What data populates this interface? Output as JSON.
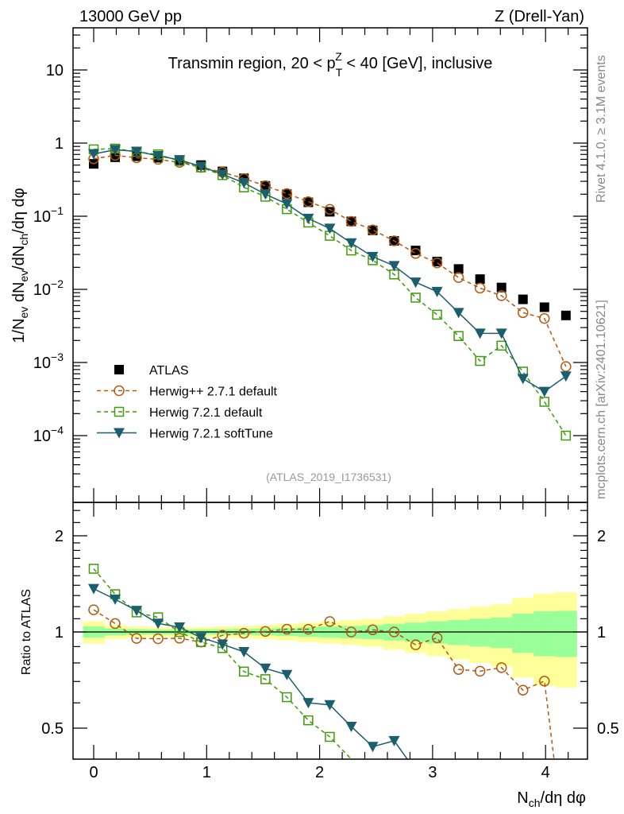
{
  "header": {
    "left": "13000 GeV pp",
    "right": "Z (Drell-Yan)"
  },
  "plot_title": {
    "pre": "Transmin region, 20 < p",
    "sup": "Z",
    "sub": "T",
    "post": " < 40 [GeV], inclusive"
  },
  "side_labels": {
    "rivet": "Rivet 4.1.0, ≥ 3.1M events",
    "mcplots": "mcplots.cern.ch [arXiv:2401.10621]"
  },
  "analysis_id": "(ATLAS_2019_I1736531)",
  "colors": {
    "atlas": "#000000",
    "herwigpp": "#b35a12",
    "herwig721": "#3f9b0b",
    "softtune": "#1b5e6e",
    "band_inner": "#99ff99",
    "band_outer": "#ffff99"
  },
  "chart_data": [
    {
      "type": "scatter",
      "title": "Transmin region, 20 < pT^Z < 40 [GeV], inclusive",
      "xlabel": "N_ch/dη dφ",
      "ylabel": "1/N_ev dN_ev/dN_ch/dη dφ",
      "yscale": "log",
      "xlim": [
        -0.18,
        4.37
      ],
      "ylim": [
        1.2e-05,
        38
      ],
      "legend_position": "bottom-left",
      "x": [
        0,
        0.19,
        0.38,
        0.57,
        0.76,
        0.95,
        1.14,
        1.33,
        1.52,
        1.71,
        1.9,
        2.09,
        2.28,
        2.47,
        2.66,
        2.85,
        3.04,
        3.23,
        3.42,
        3.61,
        3.8,
        3.99,
        4.18
      ],
      "y_ticks": [
        10,
        1,
        0.1,
        0.01,
        0.001,
        0.0001
      ],
      "y_tick_labels": [
        {
          "base": "10",
          "exp": ""
        },
        {
          "base": "1",
          "exp": ""
        },
        {
          "base": "10",
          "exp": "−1"
        },
        {
          "base": "10",
          "exp": "−2"
        },
        {
          "base": "10",
          "exp": "−3"
        },
        {
          "base": "10",
          "exp": "−4"
        }
      ],
      "series": [
        {
          "name": "ATLAS",
          "key": "atlas",
          "values": [
            0.52,
            0.64,
            0.66,
            0.63,
            0.57,
            0.5,
            0.41,
            0.33,
            0.26,
            0.2,
            0.155,
            0.115,
            0.085,
            0.064,
            0.046,
            0.034,
            0.024,
            0.019,
            0.0138,
            0.0106,
            0.0073,
            0.0057,
            0.0044
          ]
        },
        {
          "name": "Herwig++ 2.7.1 default",
          "key": "herwigpp",
          "values": [
            0.61,
            0.68,
            0.63,
            0.6,
            0.545,
            0.465,
            0.4,
            0.327,
            0.261,
            0.204,
            0.158,
            0.124,
            0.085,
            0.065,
            0.046,
            0.031,
            0.023,
            0.0145,
            0.0104,
            0.0082,
            0.0048,
            0.004,
            0.00088
          ]
        },
        {
          "name": "Herwig 7.2.1 default",
          "key": "herwig721",
          "values": [
            0.82,
            0.84,
            0.76,
            0.7,
            0.57,
            0.465,
            0.365,
            0.248,
            0.185,
            0.125,
            0.082,
            0.054,
            0.034,
            0.025,
            0.016,
            0.0077,
            0.0045,
            0.0023,
            0.00105,
            0.0017,
            0.00075,
            0.00029,
            0.0001
          ]
        },
        {
          "name": "Herwig 7.2.1 softTune",
          "key": "softtune",
          "values": [
            0.71,
            0.81,
            0.77,
            0.67,
            0.59,
            0.48,
            0.375,
            0.286,
            0.2,
            0.147,
            0.093,
            0.068,
            0.043,
            0.028,
            0.021,
            0.0125,
            0.0093,
            0.0048,
            0.0025,
            0.0025,
            0.0006,
            0.0004,
            0.00065
          ]
        }
      ]
    },
    {
      "type": "line",
      "ylabel": "Ratio to ATLAS",
      "xlabel": "N_ch/dη dφ",
      "yscale": "log",
      "ylim": [
        0.4,
        2.5
      ],
      "y_ticks": [
        0.5,
        1,
        2
      ],
      "y_tick_labels": [
        "0.5",
        "1",
        "2"
      ],
      "x_ticks": [
        0,
        1,
        2,
        3,
        4
      ],
      "x_tick_labels": [
        "0",
        "1",
        "2",
        "3",
        "4"
      ],
      "band_outer_hi": [
        1.08,
        1.05,
        1.04,
        1.035,
        1.035,
        1.035,
        1.04,
        1.045,
        1.05,
        1.06,
        1.07,
        1.08,
        1.09,
        1.1,
        1.12,
        1.14,
        1.16,
        1.18,
        1.2,
        1.22,
        1.28,
        1.32,
        1.33
      ],
      "band_inner_scale": 0.5
    }
  ]
}
